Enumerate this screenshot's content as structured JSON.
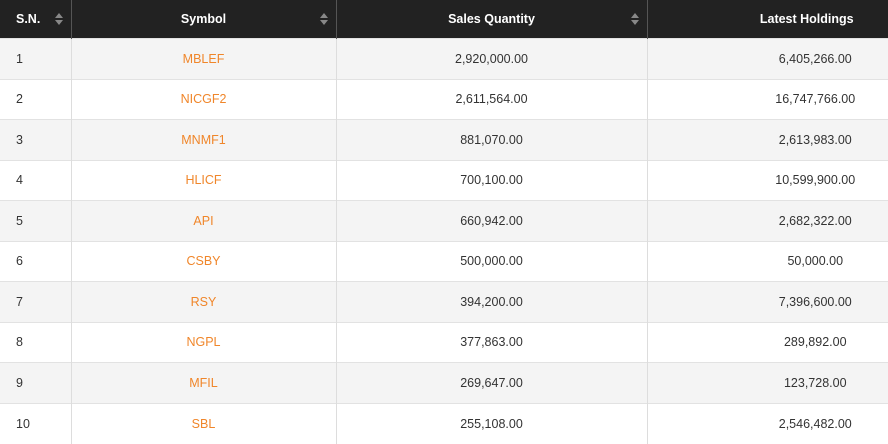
{
  "table": {
    "headers": [
      "S.N.",
      "Symbol",
      "Sales Quantity",
      "Latest Holdings"
    ],
    "rows": [
      [
        "1",
        "MBLEF",
        "2,920,000.00",
        "6,405,266.00"
      ],
      [
        "2",
        "NICGF2",
        "2,611,564.00",
        "16,747,766.00"
      ],
      [
        "3",
        "MNMF1",
        "881,070.00",
        "2,613,983.00"
      ],
      [
        "4",
        "HLICF",
        "700,100.00",
        "10,599,900.00"
      ],
      [
        "5",
        "API",
        "660,942.00",
        "2,682,322.00"
      ],
      [
        "6",
        "CSBY",
        "500,000.00",
        "50,000.00"
      ],
      [
        "7",
        "RSY",
        "394,200.00",
        "7,396,600.00"
      ],
      [
        "8",
        "NGPL",
        "377,863.00",
        "289,892.00"
      ],
      [
        "9",
        "MFIL",
        "269,647.00",
        "123,728.00"
      ],
      [
        "10",
        "SBL",
        "255,108.00",
        "2,546,482.00"
      ]
    ]
  }
}
